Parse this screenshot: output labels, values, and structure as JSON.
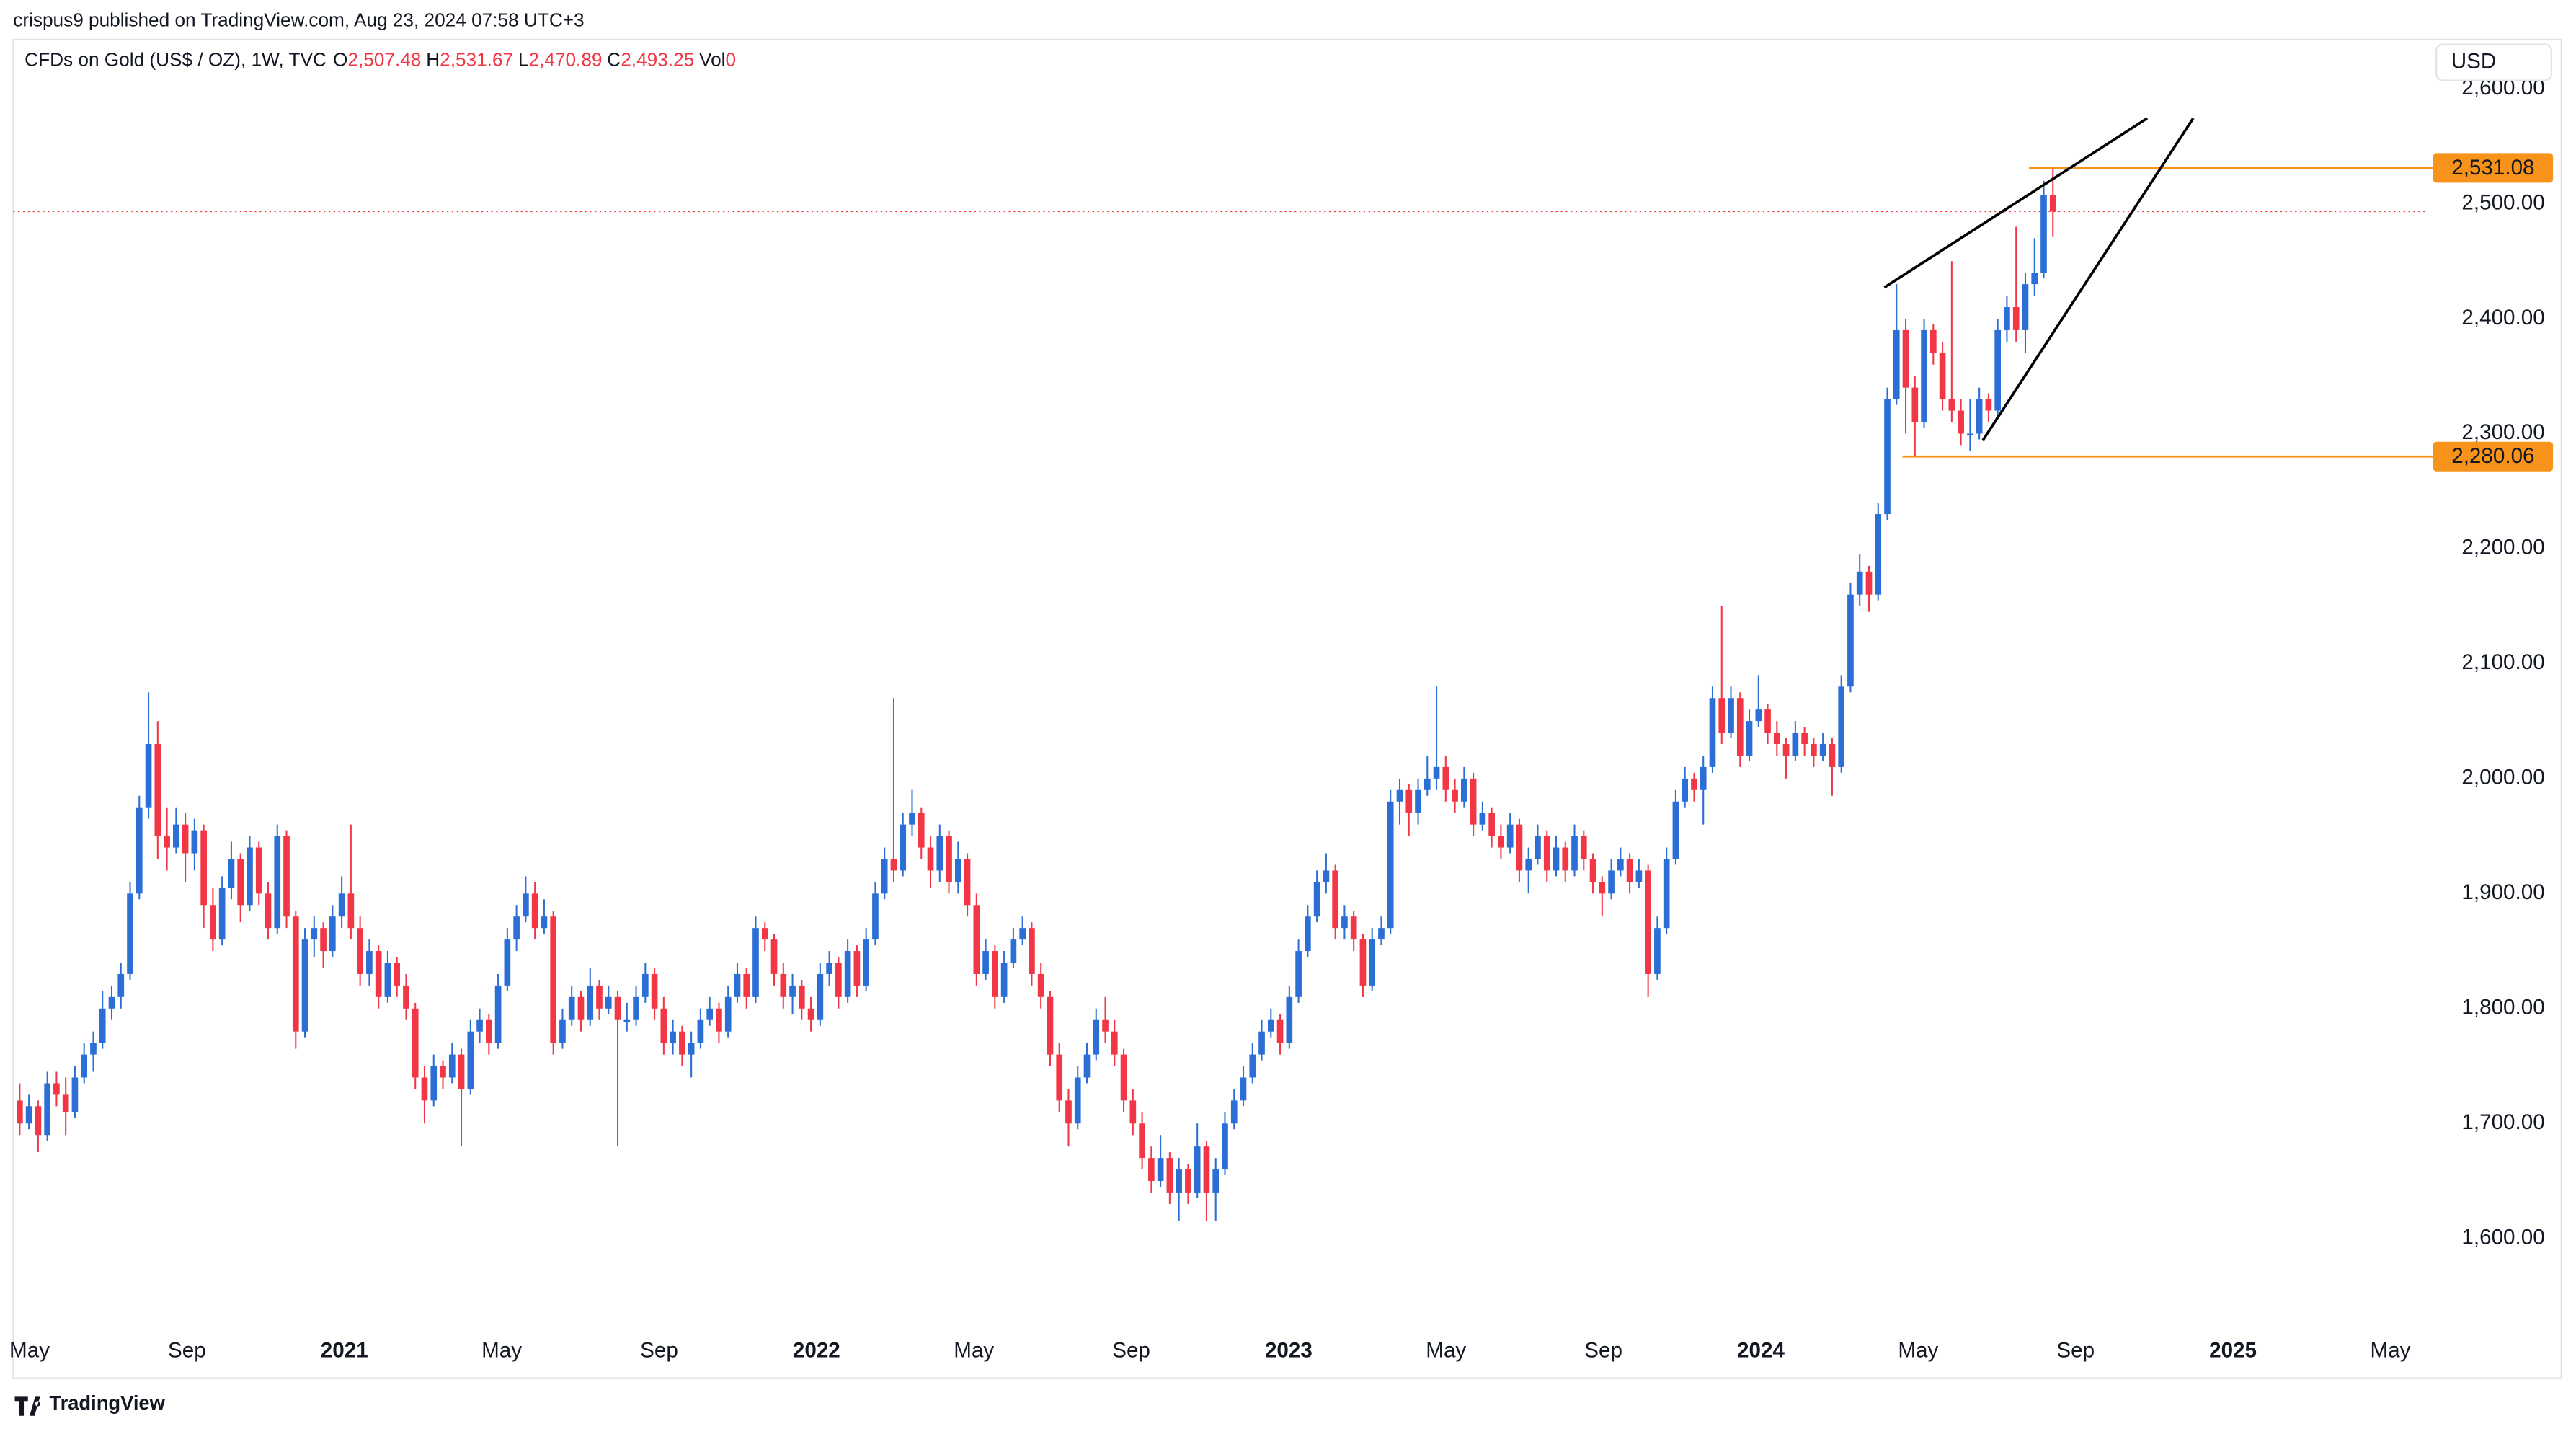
{
  "chart_data": {
    "type": "candlestick",
    "header": "crispus9 published on TradingView.com, Aug 23, 2024 07:58 UTC+3",
    "symbol": "CFDs on Gold (US$ / OZ), 1W, TVC",
    "ohlc_fields": [
      {
        "key": "O",
        "label": "2,507.48"
      },
      {
        "key": "H",
        "label": "2,531.67"
      },
      {
        "key": "L",
        "label": "2,470.89"
      },
      {
        "key": "C",
        "label": "2,493.25"
      },
      {
        "key": "Vol",
        "label": "0"
      }
    ],
    "currency": "USD",
    "brand": "TradingView",
    "up_color": "#2b6fd6",
    "down_color": "#f23645",
    "last_price_color": "#f23645",
    "ylim": [
      1480,
      2640
    ],
    "yticks": [
      {
        "value": 1600,
        "label": "1,600.00"
      },
      {
        "value": 1700,
        "label": "1,700.00"
      },
      {
        "value": 1800,
        "label": "1,800.00"
      },
      {
        "value": 1900,
        "label": "1,900.00"
      },
      {
        "value": 2000,
        "label": "2,000.00"
      },
      {
        "value": 2100,
        "label": "2,100.00"
      },
      {
        "value": 2200,
        "label": "2,200.00"
      },
      {
        "value": 2300,
        "label": "2,300.00"
      },
      {
        "value": 2400,
        "label": "2,400.00"
      },
      {
        "value": 2500,
        "label": "2,500.00"
      },
      {
        "value": 2600,
        "label": "2,600.00"
      }
    ],
    "xticks": [
      "May",
      "Sep",
      "2021",
      "May",
      "Sep",
      "2022",
      "May",
      "Sep",
      "2023",
      "May",
      "Sep",
      "2024",
      "May",
      "Sep",
      "2025",
      "May"
    ],
    "price_lines": [
      {
        "value": 2531.08,
        "label": "2,531.08",
        "color": "#f7931a"
      },
      {
        "value": 2280.06,
        "label": "2,280.06",
        "color": "#f7931a"
      }
    ],
    "ohlc": [
      [
        1720,
        1735,
        1690,
        1700
      ],
      [
        1700,
        1725,
        1695,
        1715
      ],
      [
        1715,
        1720,
        1675,
        1690
      ],
      [
        1690,
        1745,
        1685,
        1735
      ],
      [
        1735,
        1745,
        1715,
        1725
      ],
      [
        1725,
        1740,
        1690,
        1710
      ],
      [
        1710,
        1750,
        1705,
        1740
      ],
      [
        1740,
        1770,
        1735,
        1760
      ],
      [
        1760,
        1780,
        1745,
        1770
      ],
      [
        1770,
        1815,
        1765,
        1800
      ],
      [
        1800,
        1820,
        1790,
        1810
      ],
      [
        1810,
        1840,
        1800,
        1830
      ],
      [
        1830,
        1910,
        1825,
        1900
      ],
      [
        1900,
        1985,
        1895,
        1975
      ],
      [
        1975,
        2075,
        1965,
        2030
      ],
      [
        2030,
        2050,
        1930,
        1950
      ],
      [
        1950,
        1975,
        1920,
        1940
      ],
      [
        1940,
        1975,
        1935,
        1960
      ],
      [
        1960,
        1970,
        1910,
        1935
      ],
      [
        1935,
        1965,
        1920,
        1955
      ],
      [
        1955,
        1960,
        1870,
        1890
      ],
      [
        1890,
        1905,
        1850,
        1860
      ],
      [
        1860,
        1915,
        1855,
        1905
      ],
      [
        1905,
        1945,
        1895,
        1930
      ],
      [
        1930,
        1935,
        1875,
        1890
      ],
      [
        1890,
        1950,
        1885,
        1940
      ],
      [
        1940,
        1945,
        1890,
        1900
      ],
      [
        1900,
        1910,
        1860,
        1870
      ],
      [
        1870,
        1960,
        1865,
        1950
      ],
      [
        1950,
        1955,
        1870,
        1880
      ],
      [
        1880,
        1885,
        1765,
        1780
      ],
      [
        1780,
        1870,
        1775,
        1860
      ],
      [
        1860,
        1880,
        1845,
        1870
      ],
      [
        1870,
        1875,
        1835,
        1850
      ],
      [
        1850,
        1890,
        1845,
        1880
      ],
      [
        1880,
        1915,
        1870,
        1900
      ],
      [
        1900,
        1960,
        1860,
        1870
      ],
      [
        1870,
        1880,
        1820,
        1830
      ],
      [
        1830,
        1860,
        1820,
        1850
      ],
      [
        1850,
        1855,
        1800,
        1810
      ],
      [
        1810,
        1850,
        1805,
        1840
      ],
      [
        1840,
        1845,
        1810,
        1820
      ],
      [
        1820,
        1830,
        1790,
        1800
      ],
      [
        1800,
        1805,
        1730,
        1740
      ],
      [
        1740,
        1750,
        1700,
        1720
      ],
      [
        1720,
        1760,
        1715,
        1750
      ],
      [
        1750,
        1755,
        1730,
        1740
      ],
      [
        1740,
        1770,
        1735,
        1760
      ],
      [
        1760,
        1765,
        1680,
        1730
      ],
      [
        1730,
        1790,
        1725,
        1780
      ],
      [
        1780,
        1800,
        1770,
        1790
      ],
      [
        1790,
        1795,
        1760,
        1770
      ],
      [
        1770,
        1830,
        1765,
        1820
      ],
      [
        1820,
        1870,
        1815,
        1860
      ],
      [
        1860,
        1890,
        1850,
        1880
      ],
      [
        1880,
        1915,
        1875,
        1900
      ],
      [
        1900,
        1910,
        1860,
        1870
      ],
      [
        1870,
        1895,
        1865,
        1880
      ],
      [
        1880,
        1885,
        1760,
        1770
      ],
      [
        1770,
        1800,
        1765,
        1790
      ],
      [
        1790,
        1820,
        1785,
        1810
      ],
      [
        1810,
        1815,
        1780,
        1790
      ],
      [
        1790,
        1835,
        1785,
        1820
      ],
      [
        1820,
        1825,
        1790,
        1800
      ],
      [
        1800,
        1820,
        1795,
        1810
      ],
      [
        1810,
        1815,
        1680,
        1790
      ],
      [
        1790,
        1805,
        1780,
        1790
      ],
      [
        1790,
        1820,
        1785,
        1810
      ],
      [
        1810,
        1840,
        1805,
        1830
      ],
      [
        1830,
        1835,
        1790,
        1800
      ],
      [
        1800,
        1810,
        1760,
        1770
      ],
      [
        1770,
        1790,
        1760,
        1780
      ],
      [
        1780,
        1785,
        1750,
        1760
      ],
      [
        1760,
        1780,
        1740,
        1770
      ],
      [
        1770,
        1800,
        1765,
        1790
      ],
      [
        1790,
        1810,
        1785,
        1800
      ],
      [
        1800,
        1805,
        1770,
        1780
      ],
      [
        1780,
        1820,
        1775,
        1810
      ],
      [
        1810,
        1840,
        1805,
        1830
      ],
      [
        1830,
        1835,
        1800,
        1810
      ],
      [
        1810,
        1880,
        1805,
        1870
      ],
      [
        1870,
        1875,
        1850,
        1860
      ],
      [
        1860,
        1865,
        1820,
        1830
      ],
      [
        1830,
        1840,
        1800,
        1810
      ],
      [
        1810,
        1830,
        1795,
        1820
      ],
      [
        1820,
        1825,
        1790,
        1800
      ],
      [
        1800,
        1810,
        1780,
        1790
      ],
      [
        1790,
        1840,
        1785,
        1830
      ],
      [
        1830,
        1850,
        1820,
        1840
      ],
      [
        1840,
        1845,
        1800,
        1810
      ],
      [
        1810,
        1860,
        1805,
        1850
      ],
      [
        1850,
        1855,
        1810,
        1820
      ],
      [
        1820,
        1870,
        1815,
        1860
      ],
      [
        1860,
        1910,
        1855,
        1900
      ],
      [
        1900,
        1940,
        1895,
        1930
      ],
      [
        1930,
        2070,
        1910,
        1920
      ],
      [
        1920,
        1970,
        1915,
        1960
      ],
      [
        1960,
        1990,
        1950,
        1970
      ],
      [
        1970,
        1975,
        1930,
        1940
      ],
      [
        1940,
        1950,
        1905,
        1920
      ],
      [
        1920,
        1960,
        1910,
        1950
      ],
      [
        1950,
        1955,
        1900,
        1910
      ],
      [
        1910,
        1945,
        1900,
        1930
      ],
      [
        1930,
        1935,
        1880,
        1890
      ],
      [
        1890,
        1900,
        1820,
        1830
      ],
      [
        1830,
        1860,
        1825,
        1850
      ],
      [
        1850,
        1855,
        1800,
        1810
      ],
      [
        1810,
        1850,
        1805,
        1840
      ],
      [
        1840,
        1870,
        1835,
        1860
      ],
      [
        1860,
        1880,
        1855,
        1870
      ],
      [
        1870,
        1875,
        1820,
        1830
      ],
      [
        1830,
        1840,
        1800,
        1810
      ],
      [
        1810,
        1815,
        1750,
        1760
      ],
      [
        1760,
        1770,
        1710,
        1720
      ],
      [
        1720,
        1730,
        1680,
        1700
      ],
      [
        1700,
        1750,
        1695,
        1740
      ],
      [
        1740,
        1770,
        1735,
        1760
      ],
      [
        1760,
        1800,
        1755,
        1790
      ],
      [
        1790,
        1810,
        1770,
        1780
      ],
      [
        1780,
        1790,
        1750,
        1760
      ],
      [
        1760,
        1765,
        1710,
        1720
      ],
      [
        1720,
        1730,
        1690,
        1700
      ],
      [
        1700,
        1710,
        1660,
        1670
      ],
      [
        1670,
        1680,
        1640,
        1650
      ],
      [
        1650,
        1690,
        1645,
        1670
      ],
      [
        1670,
        1675,
        1630,
        1640
      ],
      [
        1640,
        1670,
        1615,
        1660
      ],
      [
        1660,
        1665,
        1630,
        1640
      ],
      [
        1640,
        1700,
        1635,
        1680
      ],
      [
        1680,
        1685,
        1615,
        1640
      ],
      [
        1640,
        1670,
        1615,
        1660
      ],
      [
        1660,
        1710,
        1655,
        1700
      ],
      [
        1700,
        1730,
        1695,
        1720
      ],
      [
        1720,
        1750,
        1715,
        1740
      ],
      [
        1740,
        1770,
        1735,
        1760
      ],
      [
        1760,
        1790,
        1755,
        1780
      ],
      [
        1780,
        1800,
        1775,
        1790
      ],
      [
        1790,
        1795,
        1760,
        1770
      ],
      [
        1770,
        1820,
        1765,
        1810
      ],
      [
        1810,
        1860,
        1805,
        1850
      ],
      [
        1850,
        1890,
        1845,
        1880
      ],
      [
        1880,
        1920,
        1875,
        1910
      ],
      [
        1910,
        1935,
        1900,
        1920
      ],
      [
        1920,
        1925,
        1860,
        1870
      ],
      [
        1870,
        1890,
        1860,
        1880
      ],
      [
        1880,
        1885,
        1850,
        1860
      ],
      [
        1860,
        1865,
        1810,
        1820
      ],
      [
        1820,
        1870,
        1815,
        1860
      ],
      [
        1860,
        1880,
        1855,
        1870
      ],
      [
        1870,
        1990,
        1865,
        1980
      ],
      [
        1980,
        2000,
        1960,
        1990
      ],
      [
        1990,
        1995,
        1950,
        1970
      ],
      [
        1970,
        2000,
        1960,
        1990
      ],
      [
        1990,
        2020,
        1985,
        2000
      ],
      [
        2000,
        2080,
        1990,
        2010
      ],
      [
        2010,
        2020,
        1980,
        1990
      ],
      [
        1990,
        2000,
        1970,
        1980
      ],
      [
        1980,
        2010,
        1975,
        2000
      ],
      [
        2000,
        2005,
        1950,
        1960
      ],
      [
        1960,
        1980,
        1955,
        1970
      ],
      [
        1970,
        1975,
        1940,
        1950
      ],
      [
        1950,
        1960,
        1930,
        1940
      ],
      [
        1940,
        1970,
        1935,
        1960
      ],
      [
        1960,
        1965,
        1910,
        1920
      ],
      [
        1920,
        1940,
        1900,
        1930
      ],
      [
        1930,
        1960,
        1925,
        1950
      ],
      [
        1950,
        1955,
        1910,
        1920
      ],
      [
        1920,
        1950,
        1915,
        1940
      ],
      [
        1940,
        1945,
        1910,
        1920
      ],
      [
        1920,
        1960,
        1915,
        1950
      ],
      [
        1950,
        1955,
        1920,
        1930
      ],
      [
        1930,
        1935,
        1900,
        1910
      ],
      [
        1910,
        1915,
        1880,
        1900
      ],
      [
        1900,
        1930,
        1895,
        1920
      ],
      [
        1920,
        1940,
        1915,
        1930
      ],
      [
        1930,
        1935,
        1900,
        1910
      ],
      [
        1910,
        1930,
        1905,
        1920
      ],
      [
        1920,
        1925,
        1810,
        1830
      ],
      [
        1830,
        1880,
        1825,
        1870
      ],
      [
        1870,
        1940,
        1865,
        1930
      ],
      [
        1930,
        1990,
        1925,
        1980
      ],
      [
        1980,
        2010,
        1975,
        2000
      ],
      [
        2000,
        2005,
        1980,
        1990
      ],
      [
        1990,
        2020,
        1960,
        2010
      ],
      [
        2010,
        2080,
        2005,
        2070
      ],
      [
        2070,
        2150,
        2030,
        2040
      ],
      [
        2040,
        2080,
        2035,
        2070
      ],
      [
        2070,
        2075,
        2010,
        2020
      ],
      [
        2020,
        2060,
        2015,
        2050
      ],
      [
        2050,
        2090,
        2045,
        2060
      ],
      [
        2060,
        2065,
        2030,
        2040
      ],
      [
        2040,
        2050,
        2020,
        2030
      ],
      [
        2030,
        2035,
        2000,
        2020
      ],
      [
        2020,
        2050,
        2015,
        2040
      ],
      [
        2040,
        2045,
        2020,
        2030
      ],
      [
        2030,
        2035,
        2010,
        2020
      ],
      [
        2020,
        2040,
        2015,
        2030
      ],
      [
        2030,
        2035,
        1985,
        2010
      ],
      [
        2010,
        2090,
        2005,
        2080
      ],
      [
        2080,
        2170,
        2075,
        2160
      ],
      [
        2160,
        2195,
        2150,
        2180
      ],
      [
        2180,
        2185,
        2145,
        2160
      ],
      [
        2160,
        2240,
        2155,
        2230
      ],
      [
        2230,
        2340,
        2225,
        2330
      ],
      [
        2330,
        2430,
        2325,
        2390
      ],
      [
        2390,
        2400,
        2300,
        2340
      ],
      [
        2340,
        2350,
        2280,
        2310
      ],
      [
        2310,
        2400,
        2305,
        2390
      ],
      [
        2390,
        2395,
        2360,
        2370
      ],
      [
        2370,
        2380,
        2320,
        2330
      ],
      [
        2330,
        2450,
        2310,
        2320
      ],
      [
        2320,
        2330,
        2290,
        2300
      ],
      [
        2300,
        2330,
        2285,
        2300
      ],
      [
        2300,
        2340,
        2295,
        2330
      ],
      [
        2330,
        2335,
        2310,
        2320
      ],
      [
        2320,
        2400,
        2315,
        2390
      ],
      [
        2390,
        2420,
        2380,
        2410
      ],
      [
        2410,
        2480,
        2380,
        2390
      ],
      [
        2390,
        2440,
        2370,
        2430
      ],
      [
        2430,
        2470,
        2420,
        2440
      ],
      [
        2440,
        2520,
        2435,
        2507.48
      ],
      [
        2507.48,
        2531.67,
        2470.89,
        2493.25
      ]
    ]
  }
}
